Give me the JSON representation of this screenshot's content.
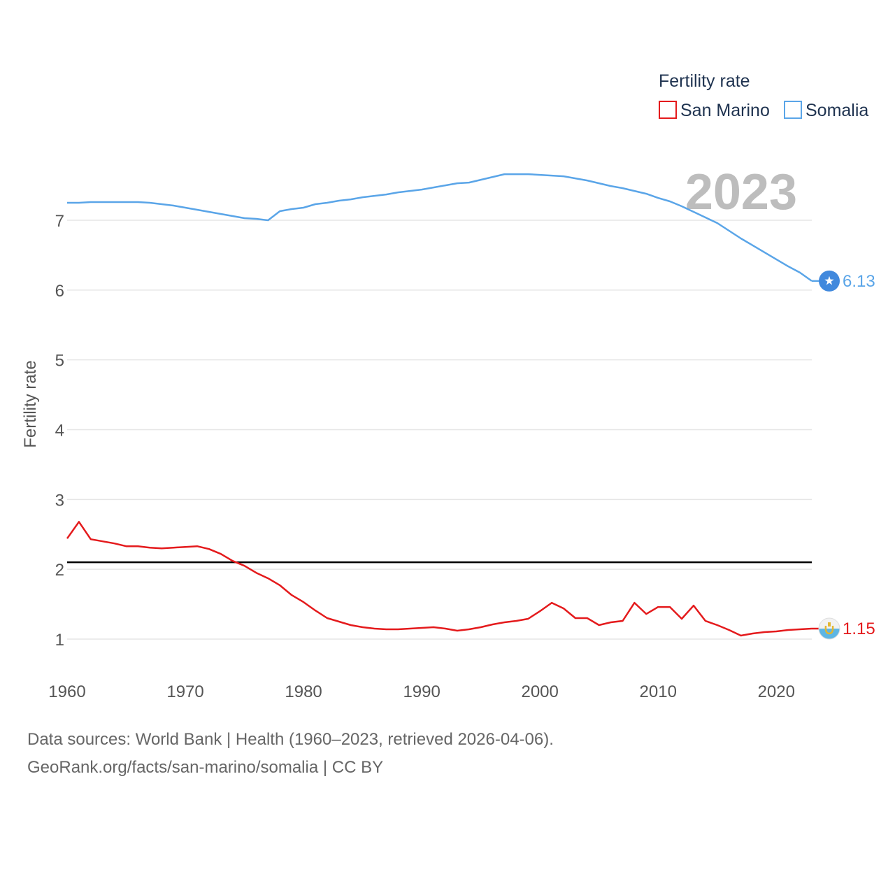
{
  "chart_data": {
    "type": "line",
    "title": "",
    "xlabel": "",
    "ylabel": "Fertility rate",
    "xlim": [
      1960,
      2023
    ],
    "ylim": [
      0.5,
      7.9
    ],
    "x_ticks": [
      "1960",
      "1970",
      "1980",
      "1990",
      "2000",
      "2010",
      "2020"
    ],
    "y_ticks": [
      "1",
      "2",
      "3",
      "4",
      "5",
      "6",
      "7"
    ],
    "legend_title": "Fertility rate",
    "legend_position": "top-right",
    "year_label": "2023",
    "reference_line": 2.1,
    "x": [
      1960,
      1961,
      1962,
      1963,
      1964,
      1965,
      1966,
      1967,
      1968,
      1969,
      1970,
      1971,
      1972,
      1973,
      1974,
      1975,
      1976,
      1977,
      1978,
      1979,
      1980,
      1981,
      1982,
      1983,
      1984,
      1985,
      1986,
      1987,
      1988,
      1989,
      1990,
      1991,
      1992,
      1993,
      1994,
      1995,
      1996,
      1997,
      1998,
      1999,
      2000,
      2001,
      2002,
      2003,
      2004,
      2005,
      2006,
      2007,
      2008,
      2009,
      2010,
      2011,
      2012,
      2013,
      2014,
      2015,
      2016,
      2017,
      2018,
      2019,
      2020,
      2021,
      2022,
      2023
    ],
    "series": [
      {
        "name": "San Marino",
        "color": "#e41a1c",
        "end_label": "1.15",
        "flag": "san-marino-flag-icon",
        "values": [
          2.44,
          2.68,
          2.43,
          2.4,
          2.37,
          2.33,
          2.33,
          2.31,
          2.3,
          2.31,
          2.32,
          2.33,
          2.29,
          2.22,
          2.12,
          2.05,
          1.95,
          1.87,
          1.77,
          1.63,
          1.53,
          1.41,
          1.3,
          1.25,
          1.2,
          1.17,
          1.15,
          1.14,
          1.14,
          1.15,
          1.16,
          1.17,
          1.15,
          1.12,
          1.14,
          1.17,
          1.21,
          1.24,
          1.26,
          1.29,
          1.4,
          1.52,
          1.44,
          1.3,
          1.3,
          1.2,
          1.24,
          1.26,
          1.52,
          1.36,
          1.46,
          1.46,
          1.29,
          1.48,
          1.26,
          1.2,
          1.13,
          1.05,
          1.08,
          1.1,
          1.11,
          1.13,
          1.14,
          1.15
        ]
      },
      {
        "name": "Somalia",
        "color": "#5aa5e8",
        "end_label": "6.13",
        "flag": "somalia-flag-icon",
        "values": [
          7.25,
          7.25,
          7.26,
          7.26,
          7.26,
          7.26,
          7.26,
          7.25,
          7.23,
          7.21,
          7.18,
          7.15,
          7.12,
          7.09,
          7.06,
          7.03,
          7.02,
          7.0,
          7.13,
          7.16,
          7.18,
          7.23,
          7.25,
          7.28,
          7.3,
          7.33,
          7.35,
          7.37,
          7.4,
          7.42,
          7.44,
          7.47,
          7.5,
          7.53,
          7.54,
          7.58,
          7.62,
          7.66,
          7.66,
          7.66,
          7.65,
          7.64,
          7.63,
          7.6,
          7.57,
          7.53,
          7.49,
          7.46,
          7.42,
          7.38,
          7.32,
          7.27,
          7.2,
          7.12,
          7.04,
          6.96,
          6.85,
          6.74,
          6.64,
          6.54,
          6.44,
          6.34,
          6.25,
          6.13
        ]
      }
    ]
  },
  "footer": {
    "line1": "Data sources: World Bank | Health (1960–2023, retrieved 2026-04-06).",
    "line2": "GeoRank.org/facts/san-marino/somalia | CC BY"
  }
}
